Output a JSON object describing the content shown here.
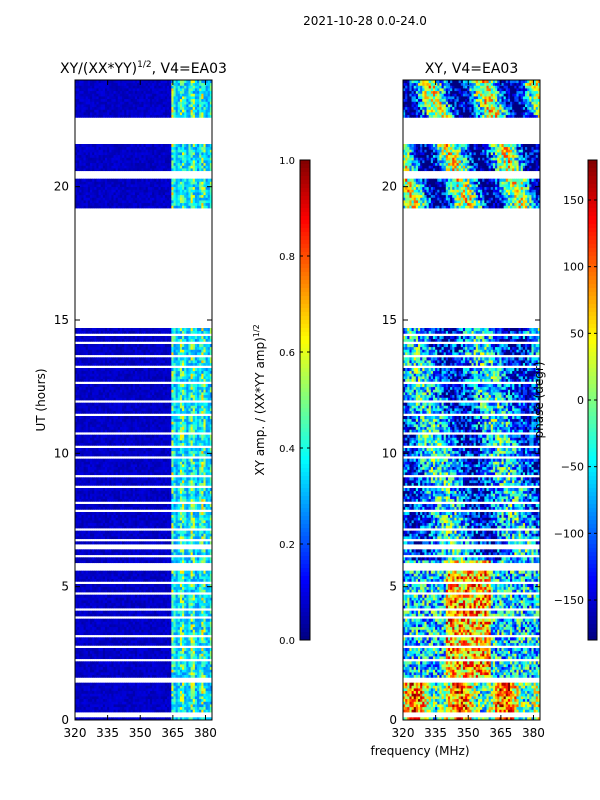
{
  "figure": {
    "suptitle": "2021-10-28 0.0-24.0",
    "shared_xlabel": "frequency (MHz)"
  },
  "chart_data": [
    {
      "type": "heatmap",
      "title": "XY/(XX*YY)$^{1/2}$, V4=EA03",
      "title_main": "XY/(XX*YY)",
      "title_exp": "1/2",
      "title_tail": ", V4=EA03",
      "xlabel": "frequency (MHz)",
      "ylabel": "UT (hours)",
      "xlim": [
        320,
        383
      ],
      "ylim": [
        0,
        24
      ],
      "xticks": [
        320,
        335,
        350,
        365,
        380
      ],
      "yticks": [
        0,
        5,
        10,
        15,
        20
      ],
      "colormap": "jet",
      "colorbar": {
        "label": "XY amp. / (XX*YY amp)$^{1/2}$",
        "label_main": "XY amp. / (XX*YY amp)",
        "label_exp": "1/2",
        "range": [
          0.0,
          1.0
        ],
        "ticks": [
          "0.0",
          "0.2",
          "0.4",
          "0.6",
          "0.8",
          "1.0"
        ],
        "tick_values": [
          0.0,
          0.2,
          0.4,
          0.6,
          0.8,
          1.0
        ]
      },
      "data_gaps_hours": [
        [
          14.7,
          19.2
        ],
        [
          21.6,
          22.6
        ],
        [
          20.3,
          20.6
        ],
        [
          1.4,
          1.6
        ],
        [
          0.1,
          0.3
        ],
        [
          6.4,
          6.6
        ],
        [
          5.6,
          5.75
        ]
      ],
      "description_values": {
        "background_level": 0.05,
        "band_365_383_level": 0.45
      }
    },
    {
      "type": "heatmap",
      "title": "XY, V4=EA03",
      "xlabel": "frequency (MHz)",
      "ylabel": "",
      "xlim": [
        320,
        383
      ],
      "ylim": [
        0,
        24
      ],
      "xticks": [
        320,
        335,
        350,
        365,
        380
      ],
      "yticks": [
        0,
        5,
        10,
        15,
        20
      ],
      "colormap": "jet",
      "colorbar": {
        "label": "phase (degr)",
        "range": [
          -180,
          180
        ],
        "ticks": [
          "150",
          "100",
          "50",
          "0",
          "−50",
          "−100",
          "−150"
        ],
        "tick_values": [
          150,
          100,
          50,
          0,
          -50,
          -100,
          -150
        ]
      },
      "data_gaps_hours": [
        [
          14.7,
          19.2
        ],
        [
          21.6,
          22.6
        ],
        [
          20.3,
          20.6
        ],
        [
          1.4,
          1.6
        ],
        [
          0.1,
          0.3
        ],
        [
          6.4,
          6.6
        ],
        [
          5.6,
          5.75
        ]
      ]
    }
  ]
}
